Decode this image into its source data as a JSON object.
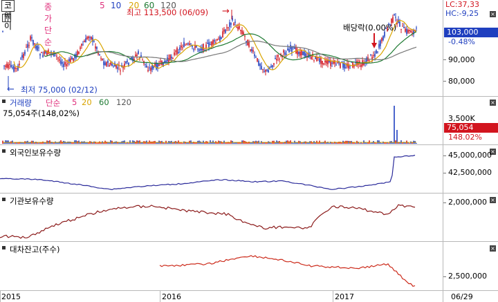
{
  "price_pane": {
    "stock_name": "코웨이",
    "indicator_label": "종가 단순",
    "ma_periods": [
      "5",
      "10",
      "20",
      "60",
      "120"
    ],
    "ma_colors": [
      "#e0317c",
      "#1f3fbf",
      "#d9a400",
      "#1e7a32",
      "#555555"
    ],
    "lc_value": "LC:37,33",
    "hc_value": "HC:-9,25",
    "high_annotation": "최고 113,500 (06/09)",
    "low_annotation": "최저 75,000 (02/12)",
    "dividend_label": "배당락(0.00%)",
    "current_price": "103,000",
    "change_pct": "-0.48%",
    "axis_labels": [
      "90,000",
      "80,000"
    ]
  },
  "volume_pane": {
    "indicator_label": "거래량",
    "ma_label": "단순",
    "ma_periods": [
      "5",
      "20",
      "60",
      "120"
    ],
    "ma_colors": [
      "#e0317c",
      "#d9a400",
      "#1e7a32",
      "#555555"
    ],
    "volume_text": "75,054주(148,02%)",
    "axis_label": "3,500K",
    "current_volume": "75,054",
    "volume_pct": "148.02%"
  },
  "foreign_pane": {
    "title": "외국인보유수량",
    "axis_labels": [
      "45,000,000",
      "42,500,000"
    ]
  },
  "institution_pane": {
    "title": "기관보유수량",
    "axis_labels": [
      "2,000,000"
    ]
  },
  "short_pane": {
    "title": "대차잔고(주수)",
    "axis_labels": [
      "2,500,000"
    ]
  },
  "x_axis": {
    "labels": [
      "2015",
      "2016",
      "2017",
      "06/29"
    ]
  },
  "colors": {
    "up": "#d2141e",
    "down": "#1f3fbf",
    "foreign_line": "#2a2a9a",
    "institution_line": "#8b1a1a",
    "short_line": "#cc2a1a",
    "price_tag": "#1f3fbf",
    "volume_tag": "#d2141e"
  }
}
